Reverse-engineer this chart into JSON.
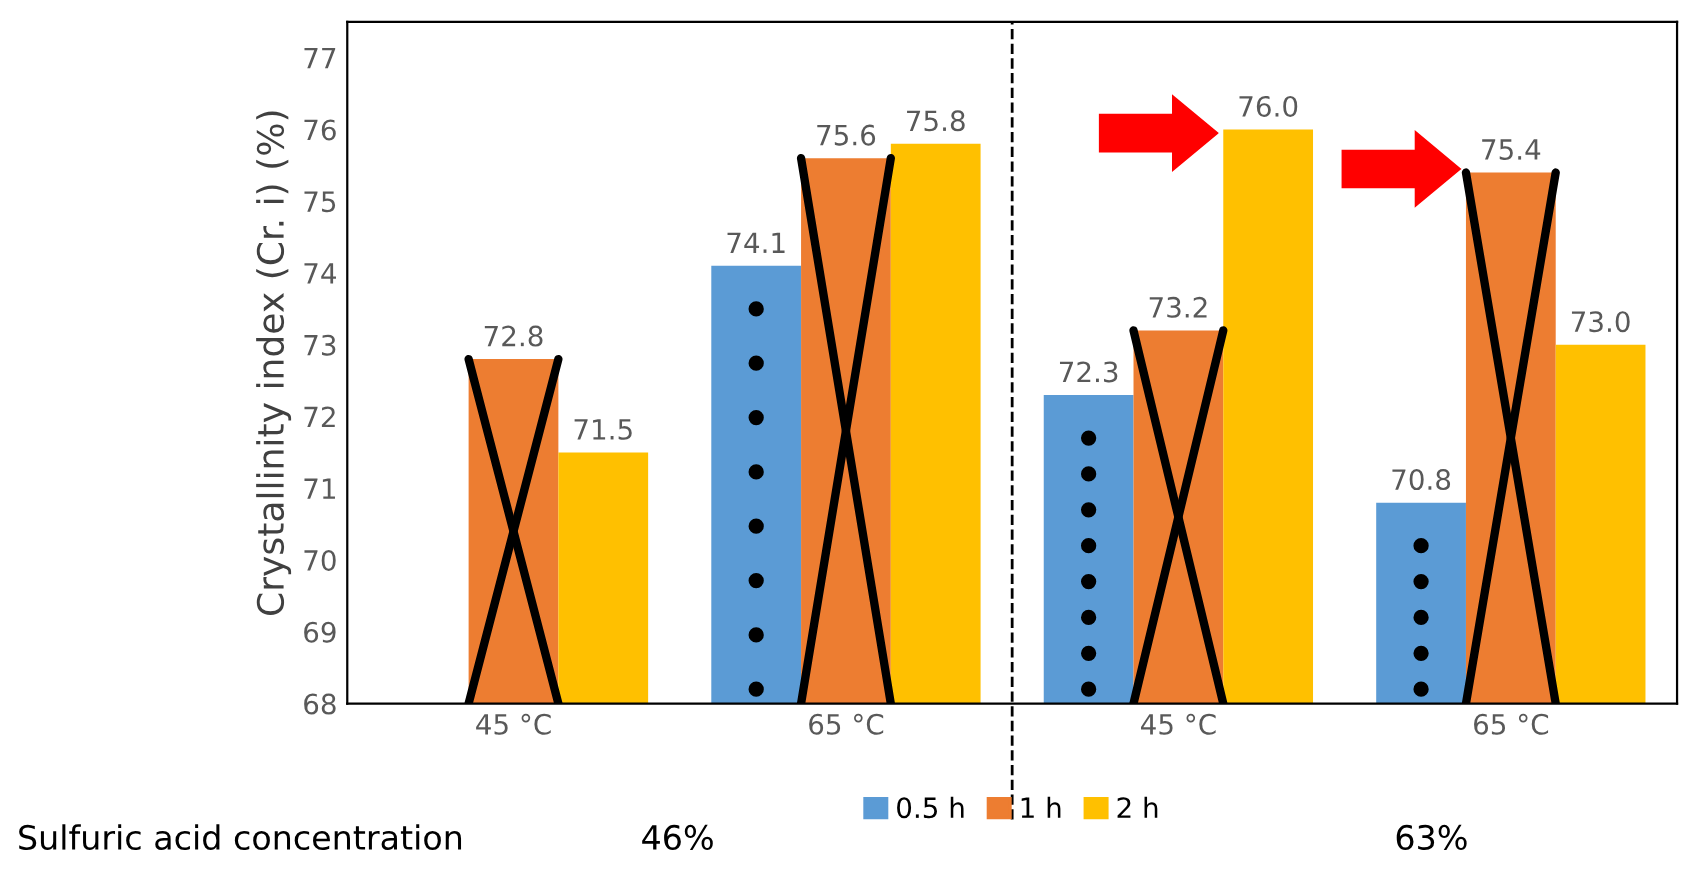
{
  "chart_data": {
    "type": "bar",
    "ylabel": "Crystallinity index (Cr. i) (%)",
    "categories": [
      "45 °C",
      "65 °C",
      "45 °C",
      "65 °C"
    ],
    "series": [
      {
        "name": "0.5 h",
        "color": "#5b9bd5",
        "values": [
          null,
          74.1,
          72.3,
          70.8
        ],
        "value_labels": [
          null,
          "74.1",
          "72.3",
          "70.8"
        ]
      },
      {
        "name": "1 h",
        "color": "#ed7d31",
        "values": [
          72.8,
          75.6,
          73.2,
          75.4
        ],
        "value_labels": [
          "72.8",
          "75.6",
          "73.2",
          "75.4"
        ]
      },
      {
        "name": "2 h",
        "color": "#ffc000",
        "values": [
          71.5,
          75.8,
          76.0,
          73.0
        ],
        "value_labels": [
          "71.5",
          "75.8",
          "76.0",
          "73.0"
        ]
      }
    ],
    "ylim": [
      68,
      77.5
    ],
    "yticks": [
      68,
      69,
      70,
      71,
      72,
      73,
      74,
      75,
      76,
      77
    ],
    "grid": false,
    "legend": "bottom",
    "annotations": [
      "Sulfuric acid concentration",
      "46%",
      "63%"
    ]
  }
}
